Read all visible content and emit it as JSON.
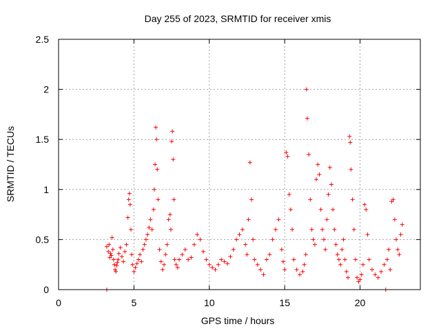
{
  "chart_data": {
    "type": "scatter",
    "title": "Day 255 of 2023, SRMTID for receiver xmis",
    "xlabel": "GPS time / hours",
    "ylabel": "SRMTID / TECUs",
    "xlim": [
      0,
      24
    ],
    "ylim": [
      0,
      2.5
    ],
    "x_ticks": [
      0,
      5,
      10,
      15,
      20
    ],
    "x_tick_labels": [
      "0",
      "5",
      "10",
      "15",
      "20"
    ],
    "y_ticks": [
      0,
      0.5,
      1,
      1.5,
      2,
      2.5
    ],
    "y_tick_labels": [
      "0",
      "0.5",
      "1",
      "1.5",
      "2",
      "2.5"
    ],
    "grid": true,
    "marker": "plus",
    "series": [
      {
        "name": "SRMTID",
        "color": "#ff0000",
        "x": [
          3.2,
          3.3,
          3.35,
          3.4,
          3.45,
          3.5,
          3.55,
          3.6,
          3.65,
          3.7,
          3.75,
          3.8,
          3.85,
          3.9,
          3.95,
          4.0,
          4.1,
          4.2,
          4.3,
          4.4,
          4.5,
          4.6,
          4.65,
          4.7,
          4.75,
          4.8,
          4.85,
          4.9,
          5.0,
          5.1,
          5.2,
          5.3,
          5.4,
          5.5,
          5.6,
          5.7,
          5.8,
          5.9,
          6.0,
          6.1,
          6.2,
          6.3,
          6.35,
          6.4,
          6.45,
          6.5,
          6.55,
          6.6,
          6.7,
          6.8,
          6.9,
          7.0,
          7.1,
          7.2,
          7.3,
          7.4,
          7.45,
          7.5,
          7.55,
          7.6,
          7.65,
          7.7,
          7.8,
          7.9,
          8.0,
          8.2,
          8.4,
          8.6,
          8.8,
          9.0,
          9.2,
          9.4,
          9.6,
          9.8,
          10.0,
          10.2,
          10.4,
          10.6,
          10.8,
          11.0,
          11.2,
          11.4,
          11.6,
          11.8,
          12.0,
          12.2,
          12.4,
          12.5,
          12.6,
          12.7,
          12.8,
          12.9,
          13.0,
          13.2,
          13.4,
          13.6,
          13.8,
          14.0,
          14.2,
          14.4,
          14.6,
          14.8,
          14.9,
          15.0,
          15.1,
          15.2,
          15.3,
          15.4,
          15.5,
          15.6,
          15.8,
          16.0,
          16.2,
          16.3,
          16.4,
          16.45,
          16.5,
          16.6,
          16.7,
          16.8,
          16.9,
          17.0,
          17.1,
          17.2,
          17.3,
          17.4,
          17.5,
          17.6,
          17.7,
          17.8,
          17.9,
          18.0,
          18.1,
          18.2,
          18.3,
          18.4,
          18.5,
          18.6,
          18.7,
          18.8,
          18.9,
          19.0,
          19.1,
          19.2,
          19.3,
          19.35,
          19.4,
          19.5,
          19.6,
          19.7,
          19.8,
          19.9,
          20.0,
          20.1,
          20.2,
          20.3,
          20.4,
          20.5,
          20.6,
          20.8,
          21.0,
          21.2,
          21.4,
          21.6,
          21.8,
          21.9,
          22.0,
          22.1,
          22.2,
          22.3,
          22.4,
          22.5,
          22.6,
          22.7,
          22.8,
          3.2,
          21.7
        ],
        "y": [
          0.43,
          0.38,
          0.45,
          0.32,
          0.36,
          0.34,
          0.52,
          0.4,
          0.3,
          0.25,
          0.2,
          0.18,
          0.24,
          0.27,
          0.3,
          0.36,
          0.42,
          0.33,
          0.28,
          0.38,
          0.45,
          0.72,
          0.9,
          0.96,
          0.85,
          0.6,
          0.35,
          0.25,
          0.18,
          0.22,
          0.26,
          0.3,
          0.35,
          0.28,
          0.4,
          0.45,
          0.5,
          0.55,
          0.62,
          0.7,
          0.6,
          0.8,
          1.0,
          1.25,
          1.62,
          1.5,
          1.2,
          0.9,
          0.4,
          0.28,
          0.2,
          0.25,
          0.35,
          0.45,
          0.7,
          0.75,
          0.6,
          1.48,
          1.58,
          1.3,
          0.9,
          0.3,
          0.25,
          0.22,
          0.3,
          0.35,
          0.4,
          0.3,
          0.32,
          0.45,
          0.55,
          0.5,
          0.38,
          0.3,
          0.25,
          0.22,
          0.2,
          0.25,
          0.3,
          0.28,
          0.26,
          0.33,
          0.4,
          0.5,
          0.55,
          0.6,
          0.45,
          0.35,
          0.7,
          1.27,
          0.9,
          0.5,
          0.3,
          0.25,
          0.2,
          0.15,
          0.3,
          0.35,
          0.5,
          0.6,
          0.7,
          0.4,
          0.28,
          0.2,
          1.37,
          1.33,
          0.95,
          0.8,
          0.6,
          0.3,
          0.2,
          0.15,
          0.18,
          0.25,
          0.35,
          2.0,
          1.71,
          1.35,
          0.9,
          0.6,
          0.5,
          0.45,
          1.1,
          1.25,
          1.15,
          0.8,
          0.6,
          0.5,
          0.4,
          0.7,
          0.95,
          1.22,
          1.05,
          0.8,
          0.6,
          0.45,
          0.35,
          0.3,
          0.25,
          0.4,
          0.5,
          0.3,
          0.18,
          0.12,
          1.53,
          1.47,
          1.2,
          0.9,
          0.6,
          0.3,
          0.12,
          0.08,
          0.1,
          0.15,
          0.25,
          0.85,
          0.8,
          0.55,
          0.3,
          0.2,
          0.15,
          0.12,
          0.18,
          0.25,
          0.3,
          0.4,
          0.2,
          0.88,
          0.9,
          0.7,
          0.5,
          0.4,
          0.35,
          0.55,
          0.65,
          0.0,
          0.0
        ]
      }
    ]
  }
}
